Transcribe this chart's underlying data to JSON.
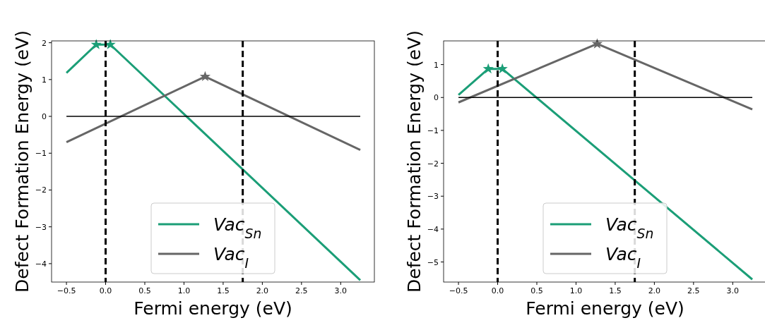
{
  "chart_data": [
    {
      "type": "line",
      "xlabel": "Fermi energy (eV)",
      "ylabel": "Defect Formation Energy (eV)",
      "xlim": [
        -0.69,
        3.43
      ],
      "ylim": [
        -4.5,
        2.05
      ],
      "xticks": [
        {
          "value": -0.5,
          "label": "−0.5"
        },
        {
          "value": 0,
          "label": "0.0"
        },
        {
          "value": 0.5,
          "label": "0.5"
        },
        {
          "value": 1,
          "label": "1.0"
        },
        {
          "value": 1.5,
          "label": "1.5"
        },
        {
          "value": 2,
          "label": "2.0"
        },
        {
          "value": 2.5,
          "label": "2.5"
        },
        {
          "value": 3,
          "label": "3.0"
        }
      ],
      "yticks": [
        {
          "value": -4,
          "label": "−4"
        },
        {
          "value": -3,
          "label": "−3"
        },
        {
          "value": -2,
          "label": "−2"
        },
        {
          "value": -1,
          "label": "−1"
        },
        0,
        1,
        2
      ],
      "legend": "bottom",
      "marker": "none",
      "line_style": "solid",
      "grid": false,
      "ref_lines": [
        {
          "axis": "x",
          "value": 0,
          "color": "#000000",
          "line_style": "dashed"
        },
        {
          "axis": "x",
          "value": 1.75,
          "color": "#000000",
          "line_style": "dashed"
        }
      ],
      "series": [
        {
          "name": "Vac$_{Sn}$",
          "color": "#1b9e77",
          "x": [
            -0.5,
            -0.12,
            0.06,
            3.25
          ],
          "values": [
            1.18,
            1.95,
            1.95,
            -4.45
          ]
        },
        {
          "name": "Vac$_{I}$",
          "color": "#666666",
          "x": [
            -0.5,
            1.27,
            3.25
          ],
          "values": [
            -0.7,
            1.08,
            -0.91
          ]
        },
        {
          "type": "line",
          "color": "#000000",
          "x": [
            -0.5,
            3.25
          ],
          "values": [
            0,
            0
          ]
        },
        {
          "type": "scatter",
          "marker": "star",
          "color": "#1b9e77",
          "x": [
            -0.12,
            0.06
          ],
          "values": [
            1.95,
            1.95
          ]
        },
        {
          "type": "scatter",
          "marker": "star",
          "color": "#666666",
          "x": [
            1.27
          ],
          "values": [
            1.08
          ]
        }
      ]
    },
    {
      "type": "line",
      "xlabel": "Fermi energy (eV)",
      "ylabel": "Defect Formation Energy (eV)",
      "xlim": [
        -0.69,
        3.43
      ],
      "ylim": [
        -5.61,
        1.72
      ],
      "xticks": [
        {
          "value": -0.5,
          "label": "−0.5"
        },
        {
          "value": 0,
          "label": "0.0"
        },
        {
          "value": 0.5,
          "label": "0.5"
        },
        {
          "value": 1,
          "label": "1.0"
        },
        {
          "value": 1.5,
          "label": "1.5"
        },
        {
          "value": 2,
          "label": "2.0"
        },
        {
          "value": 2.5,
          "label": "2.5"
        },
        {
          "value": 3,
          "label": "3.0"
        }
      ],
      "yticks": [
        {
          "value": -5,
          "label": "−5"
        },
        {
          "value": -4,
          "label": "−4"
        },
        {
          "value": -3,
          "label": "−3"
        },
        {
          "value": -2,
          "label": "−2"
        },
        {
          "value": -1,
          "label": "−1"
        },
        0,
        1
      ],
      "legend": "bottom",
      "marker": "none",
      "line_style": "solid",
      "grid": false,
      "ref_lines": [
        {
          "axis": "x",
          "value": 0,
          "color": "#000000",
          "line_style": "dashed"
        },
        {
          "axis": "x",
          "value": 1.75,
          "color": "#000000",
          "line_style": "dashed"
        }
      ],
      "series": [
        {
          "name": "Vac$_{Sn}$",
          "color": "#1b9e77",
          "x": [
            -0.5,
            -0.12,
            0.06,
            3.25
          ],
          "values": [
            0.08,
            0.87,
            0.87,
            -5.53
          ]
        },
        {
          "name": "Vac$_{I}$",
          "color": "#666666",
          "x": [
            -0.5,
            1.27,
            3.25
          ],
          "values": [
            -0.15,
            1.63,
            -0.36
          ]
        },
        {
          "type": "line",
          "color": "#000000",
          "x": [
            -0.5,
            3.25
          ],
          "values": [
            0,
            0
          ]
        },
        {
          "type": "scatter",
          "marker": "star",
          "color": "#1b9e77",
          "x": [
            -0.12,
            0.06
          ],
          "values": [
            0.87,
            0.87
          ]
        },
        {
          "type": "scatter",
          "marker": "star",
          "color": "#666666",
          "x": [
            1.27
          ],
          "values": [
            1.63
          ]
        }
      ]
    }
  ]
}
